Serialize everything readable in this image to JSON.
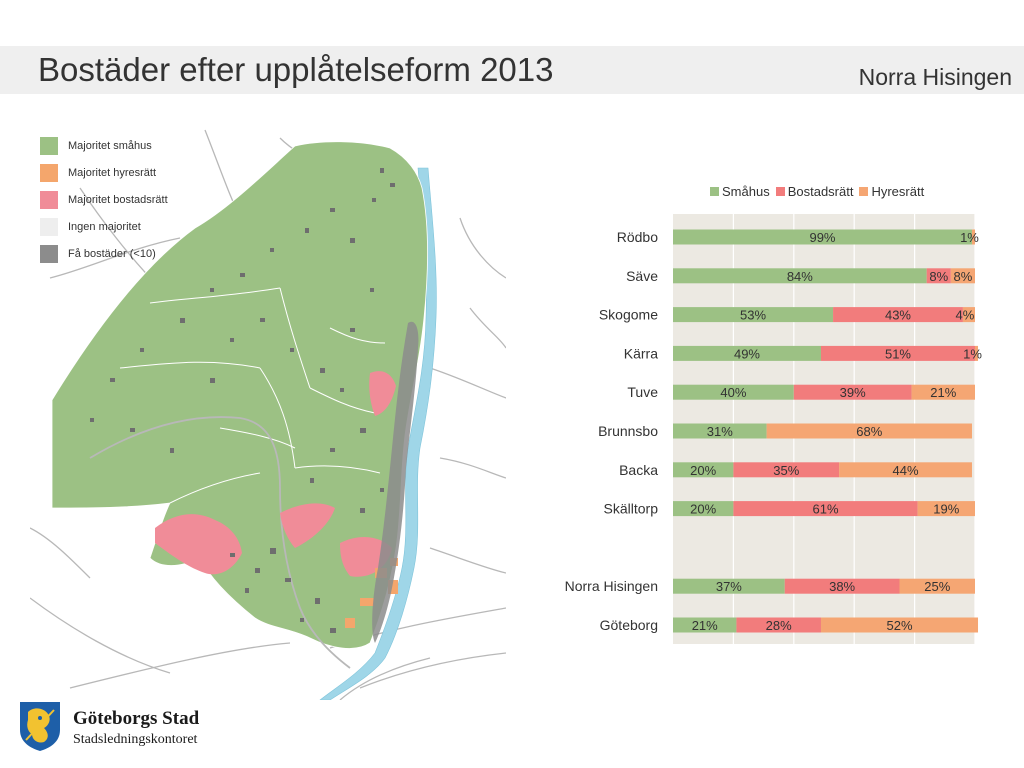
{
  "header": {
    "title": "Bostäder efter upplåtelseform 2013",
    "district": "Norra Hisingen"
  },
  "map": {
    "legend": [
      {
        "label": "Majoritet småhus",
        "color": "#9cc184"
      },
      {
        "label": "Majoritet hyresrätt",
        "color": "#f4a66c"
      },
      {
        "label": "Majoritet bostadsrätt",
        "color": "#f08c98"
      },
      {
        "label": "Ingen majoritet",
        "color": "#eeeeee"
      },
      {
        "label": "Få bostäder (<10)",
        "color": "#8c8c8c"
      }
    ],
    "colors": {
      "smahus": "#9cc184",
      "hyresratt": "#f4a66c",
      "bostadsratt": "#f08c98",
      "fa": "#6e6e6e",
      "water": "#9fd6e8",
      "road": "#b0b0b0"
    }
  },
  "chart_data": {
    "type": "bar",
    "orientation": "horizontal",
    "stacked": "percent",
    "categories": [
      "Rödbo",
      "Säve",
      "Skogome",
      "Kärra",
      "Tuve",
      "Brunnsbo",
      "Backa",
      "Skälltorp",
      "Norra Hisingen",
      "Göteborg"
    ],
    "series": [
      {
        "name": "Småhus",
        "color": "#9cc184",
        "values": [
          99,
          84,
          53,
          49,
          40,
          31,
          20,
          20,
          37,
          21
        ],
        "labels": [
          "99%",
          "84%",
          "53%",
          "49%",
          "40%",
          "31%",
          "20%",
          "20%",
          "37%",
          "21%"
        ]
      },
      {
        "name": "Bostadsrätt",
        "color": "#f27c7c",
        "values": [
          0,
          8,
          43,
          51,
          39,
          0,
          35,
          61,
          38,
          28
        ],
        "labels": [
          "",
          "8%",
          "43%",
          "51%",
          "39%",
          "",
          "35%",
          "61%",
          "38%",
          "28%"
        ]
      },
      {
        "name": "Hyresrätt",
        "color": "#f5a673",
        "values": [
          1,
          8,
          4,
          1,
          21,
          68,
          44,
          19,
          25,
          52
        ],
        "labels": [
          "1%",
          "8%",
          "4%",
          "1%",
          "21%",
          "68%",
          "44%",
          "19%",
          "25%",
          "52%"
        ]
      }
    ],
    "gap_before": "Norra Hisingen",
    "xlim": [
      0,
      100
    ],
    "grid": true,
    "legend_position": "top",
    "plot_background": "#ece9e2"
  },
  "logo": {
    "name": "Göteborgs Stad",
    "sub": "Stadsledningskontoret"
  }
}
